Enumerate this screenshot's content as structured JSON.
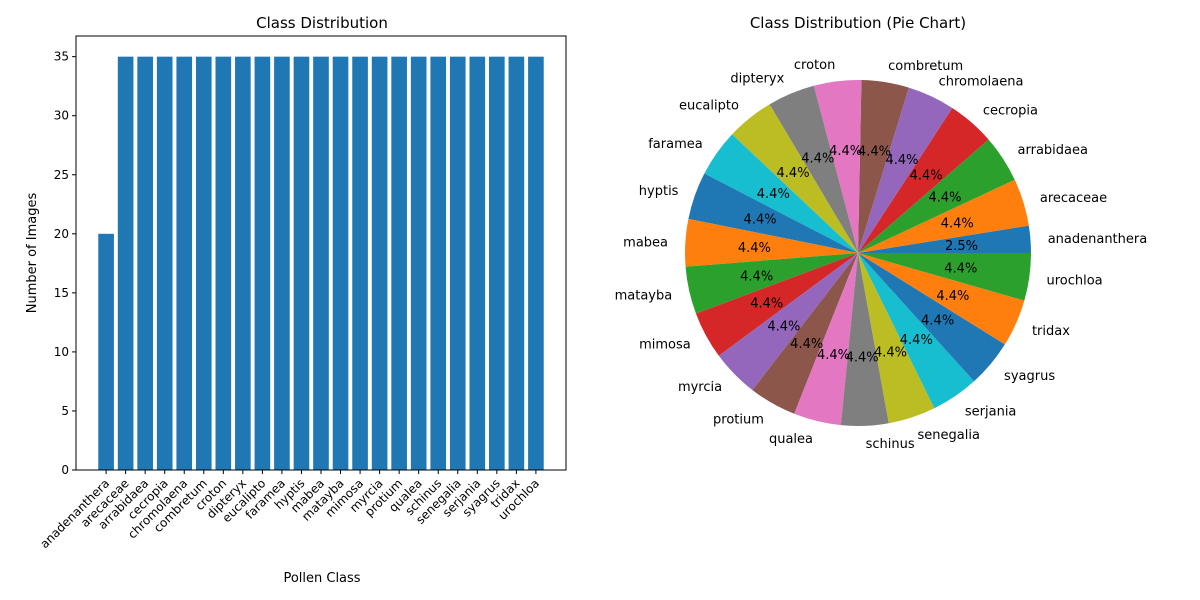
{
  "chart_data": [
    {
      "type": "bar",
      "title": "Class Distribution",
      "xlabel": "Pollen Class",
      "ylabel": "Number of Images",
      "ylim": [
        0,
        36.75
      ],
      "yticks": [
        0,
        5,
        10,
        15,
        20,
        25,
        30,
        35
      ],
      "grid": false,
      "color": "#1f77b4",
      "categories": [
        "anadenanthera",
        "arecaceae",
        "arrabidaea",
        "cecropia",
        "chromolaena",
        "combretum",
        "croton",
        "dipteryx",
        "eucalipto",
        "faramea",
        "hyptis",
        "mabea",
        "matayba",
        "mimosa",
        "myrcia",
        "protium",
        "qualea",
        "schinus",
        "senegalia",
        "serjania",
        "syagrus",
        "tridax",
        "urochloa"
      ],
      "values": [
        20,
        35,
        35,
        35,
        35,
        35,
        35,
        35,
        35,
        35,
        35,
        35,
        35,
        35,
        35,
        35,
        35,
        35,
        35,
        35,
        35,
        35,
        35
      ]
    },
    {
      "type": "pie",
      "title": "Class Distribution (Pie Chart)",
      "start_angle_deg": 0,
      "direction": "counterclockwise",
      "labels": [
        "anadenanthera",
        "arecaceae",
        "arrabidaea",
        "cecropia",
        "chromolaena",
        "combretum",
        "croton",
        "dipteryx",
        "eucalipto",
        "faramea",
        "hyptis",
        "mabea",
        "matayba",
        "mimosa",
        "myrcia",
        "protium",
        "qualea",
        "schinus",
        "senegalia",
        "serjania",
        "syagrus",
        "tridax",
        "urochloa"
      ],
      "values": [
        20,
        35,
        35,
        35,
        35,
        35,
        35,
        35,
        35,
        35,
        35,
        35,
        35,
        35,
        35,
        35,
        35,
        35,
        35,
        35,
        35,
        35,
        35
      ],
      "percent_labels": [
        "2.5%",
        "4.4%",
        "4.4%",
        "4.4%",
        "4.4%",
        "4.4%",
        "4.4%",
        "4.4%",
        "4.4%",
        "4.4%",
        "4.4%",
        "4.4%",
        "4.4%",
        "4.4%",
        "4.4%",
        "4.4%",
        "4.4%",
        "4.4%",
        "4.4%",
        "4.4%",
        "4.4%",
        "4.4%",
        "4.4%"
      ],
      "colors": [
        "#1f77b4",
        "#ff7f0e",
        "#2ca02c",
        "#d62728",
        "#9467bd",
        "#8c564b",
        "#e377c2",
        "#7f7f7f",
        "#bcbd22",
        "#17becf"
      ]
    }
  ]
}
